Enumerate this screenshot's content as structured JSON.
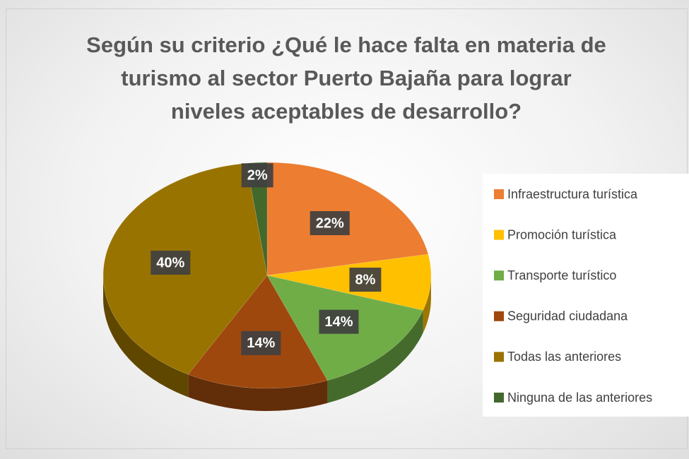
{
  "chart_data": {
    "type": "pie",
    "title": "Según su criterio ¿Qué le hace falta en materia de turismo al sector Puerto Bajaña para lograr niveles aceptables de desarrollo?",
    "categories": [
      "Infraestructura turística",
      "Promoción turística",
      "Transporte turístico",
      "Seguridad ciudadana",
      "Todas las anteriores",
      "Ninguna de las anteriores"
    ],
    "values": [
      22,
      8,
      14,
      14,
      40,
      2
    ],
    "value_labels": [
      "22%",
      "8%",
      "14%",
      "14%",
      "40%",
      "2%"
    ],
    "colors": [
      "#ed7d31",
      "#ffc000",
      "#70ad47",
      "#9e480e",
      "#997300",
      "#43682b"
    ],
    "legend": "right"
  }
}
